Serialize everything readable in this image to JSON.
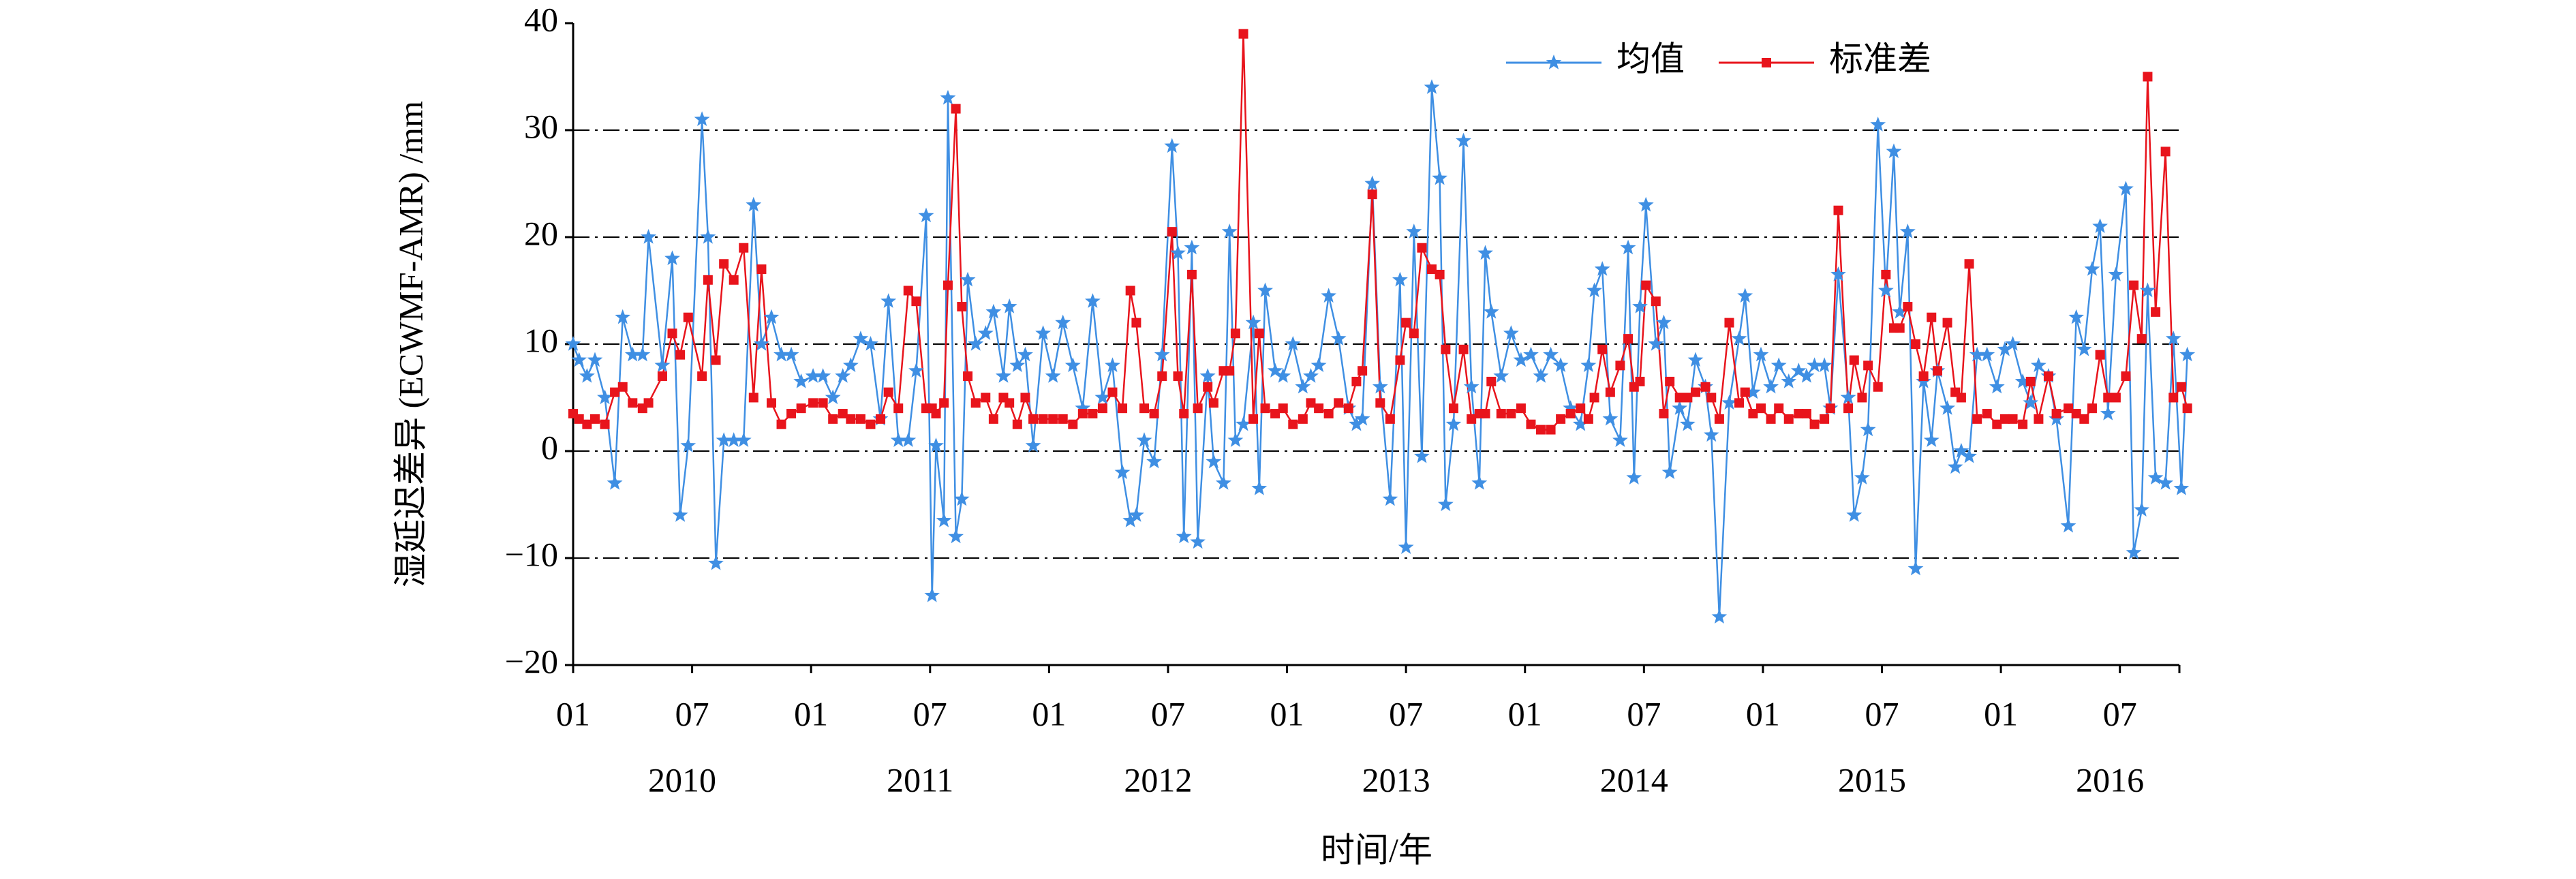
{
  "chart_data": {
    "type": "line",
    "y_label": "湿延迟差异 (ECWMF-AMR) /mm",
    "x_label": "时间/年",
    "years": [
      "2010",
      "2011",
      "2012",
      "2013",
      "2014",
      "2015",
      "2016"
    ],
    "xlim": [
      0,
      81
    ],
    "xticks": [
      {
        "value": 0,
        "label": "01"
      },
      {
        "value": 6,
        "label": "07"
      },
      {
        "value": 12,
        "label": "01"
      },
      {
        "value": 18,
        "label": "07"
      },
      {
        "value": 24,
        "label": "01"
      },
      {
        "value": 30,
        "label": "07"
      },
      {
        "value": 36,
        "label": "01"
      },
      {
        "value": 42,
        "label": "07"
      },
      {
        "value": 48,
        "label": "01"
      },
      {
        "value": 54,
        "label": "07"
      },
      {
        "value": 60,
        "label": "01"
      },
      {
        "value": 66,
        "label": "07"
      },
      {
        "value": 72,
        "label": "01"
      },
      {
        "value": 78,
        "label": "07"
      }
    ],
    "ylim": [
      -20,
      40
    ],
    "yticks": [
      {
        "value": -20,
        "label": "−20"
      },
      {
        "value": -10,
        "label": "−10"
      },
      0,
      10,
      20,
      30,
      40
    ],
    "grid": true,
    "legend": "top-right",
    "x": [
      0,
      0.3,
      0.7,
      1.1,
      1.6,
      2.1,
      2.5,
      3.0,
      3.5,
      3.8,
      4.5,
      5.0,
      5.4,
      5.8,
      6.5,
      6.8,
      7.2,
      7.6,
      8.1,
      8.6,
      9.1,
      9.5,
      10.0,
      10.5,
      11.0,
      11.5,
      12.1,
      12.6,
      13.1,
      13.6,
      14.0,
      14.5,
      15.0,
      15.5,
      15.9,
      16.4,
      16.9,
      17.3,
      17.8,
      18.1,
      18.3,
      18.7,
      18.9,
      19.3,
      19.6,
      19.9,
      20.3,
      20.8,
      21.2,
      21.7,
      22.0,
      22.4,
      22.8,
      23.2,
      23.7,
      24.2,
      24.7,
      25.2,
      25.7,
      26.2,
      26.7,
      27.2,
      27.7,
      28.1,
      28.4,
      28.8,
      29.3,
      29.7,
      30.2,
      30.5,
      30.8,
      31.2,
      31.5,
      32.0,
      32.3,
      32.8,
      33.1,
      33.4,
      33.8,
      34.3,
      34.6,
      34.9,
      35.4,
      35.8,
      36.3,
      36.8,
      37.2,
      37.6,
      38.1,
      38.6,
      39.1,
      39.5,
      39.8,
      40.3,
      40.7,
      41.2,
      41.7,
      42.0,
      42.4,
      42.8,
      43.3,
      43.7,
      44.0,
      44.4,
      44.9,
      45.3,
      45.7,
      46.0,
      46.3,
      46.8,
      47.3,
      47.8,
      48.3,
      48.8,
      49.3,
      49.8,
      50.3,
      50.8,
      51.2,
      51.5,
      51.9,
      52.3,
      52.8,
      53.2,
      53.5,
      53.8,
      54.1,
      54.6,
      55.0,
      55.3,
      55.8,
      56.2,
      56.6,
      57.1,
      57.4,
      57.8,
      58.3,
      58.8,
      59.1,
      59.5,
      59.9,
      60.4,
      60.8,
      61.3,
      61.8,
      62.2,
      62.6,
      63.1,
      63.4,
      63.8,
      64.3,
      64.6,
      65.0,
      65.3,
      65.8,
      66.2,
      66.6,
      66.9,
      67.3,
      67.7,
      68.1,
      68.5,
      68.8,
      69.3,
      69.7,
      70.0,
      70.4,
      70.8,
      71.3,
      71.8,
      72.2,
      72.6,
      73.1,
      73.5,
      73.9,
      74.4,
      74.8,
      75.4,
      75.8,
      76.2,
      76.6,
      77.0,
      77.4,
      77.8,
      78.3,
      78.7,
      79.1,
      79.4,
      79.8,
      80.3,
      80.7,
      81.1,
      81.4
    ],
    "series": [
      {
        "name": "均值",
        "color": "#3f8fe3",
        "marker": "star",
        "values": [
          10,
          8.5,
          7,
          8.5,
          5,
          -3,
          12.5,
          9,
          9,
          20,
          8,
          18,
          -6,
          0.5,
          31,
          20,
          -10.5,
          1,
          1,
          1,
          23,
          10,
          12.5,
          9,
          9,
          6.5,
          7,
          7,
          5,
          7,
          8,
          10.5,
          10,
          3,
          14,
          1,
          1,
          7.5,
          22,
          -13.5,
          0.5,
          -6.5,
          33,
          -8,
          -4.5,
          16,
          10,
          11,
          13,
          7,
          13.5,
          8,
          9,
          0.5,
          11,
          7,
          12,
          8,
          4,
          14,
          5,
          8,
          -2,
          -6.5,
          -6,
          1,
          -1,
          9,
          28.5,
          18.5,
          -8,
          19,
          -8.5,
          7,
          -1,
          -3,
          20.5,
          1,
          2.5,
          12,
          -3.5,
          15,
          7.5,
          7,
          10,
          6,
          7,
          8,
          14.5,
          10.5,
          4,
          2.5,
          3,
          25,
          6,
          -4.5,
          16,
          -9,
          20.5,
          -0.5,
          34,
          25.5,
          -5,
          2.5,
          29,
          6,
          -3,
          18.5,
          13,
          7,
          11,
          8.5,
          9,
          7,
          9,
          8,
          4,
          2.5,
          8,
          15,
          17,
          3,
          1,
          19,
          -2.5,
          13.5,
          23,
          10,
          12,
          -2,
          4,
          2.5,
          8.5,
          6,
          1.5,
          -15.5,
          4.5,
          10.5,
          14.5,
          5.5,
          9,
          6,
          8,
          6.5,
          7.5,
          7,
          8,
          8,
          4,
          16.5,
          5,
          -6,
          -2.5,
          2,
          30.5,
          15,
          28,
          13,
          20.5,
          -11,
          6.5,
          1,
          7.5,
          4,
          -1.5,
          0,
          -0.5,
          9,
          9,
          6,
          9.5,
          10,
          6.5,
          4.5,
          8,
          7,
          3,
          -7,
          12.5,
          9.5,
          17,
          21,
          3.5,
          16.5,
          24.5,
          -9.5,
          -5.5,
          15,
          -2.5,
          -3,
          10.5,
          -3.5,
          9
        ]
      },
      {
        "name": "标准差",
        "color": "#e8141c",
        "marker": "square",
        "values": [
          3.5,
          3,
          2.5,
          3,
          2.5,
          5.5,
          6,
          4.5,
          4,
          4.5,
          7,
          11,
          9,
          12.5,
          7,
          16,
          8.5,
          17.5,
          16,
          19,
          5,
          17,
          4.5,
          2.5,
          3.5,
          4,
          4.5,
          4.5,
          3,
          3.5,
          3,
          3,
          2.5,
          3,
          5.5,
          4,
          15,
          14,
          4,
          4,
          3.5,
          4.5,
          15.5,
          32,
          13.5,
          7,
          4.5,
          5,
          3,
          5,
          4.5,
          2.5,
          5,
          3,
          3,
          3,
          3,
          2.5,
          3.5,
          3.5,
          4,
          5.5,
          4,
          15,
          12,
          4,
          3.5,
          7,
          20.5,
          7,
          3.5,
          16.5,
          4,
          6,
          4.5,
          7.5,
          7.5,
          11,
          39,
          3,
          11,
          4,
          3.5,
          4,
          2.5,
          3,
          4.5,
          4,
          3.5,
          4.5,
          4,
          6.5,
          7.5,
          24,
          4.5,
          3,
          8.5,
          12,
          11,
          19,
          17,
          16.5,
          9.5,
          4,
          9.5,
          3,
          3.5,
          3.5,
          6.5,
          3.5,
          3.5,
          4,
          2.5,
          2,
          2,
          3,
          3.5,
          4,
          3,
          5,
          9.5,
          5.5,
          8,
          10.5,
          6,
          6.5,
          15.5,
          14,
          3.5,
          6.5,
          5,
          5,
          5.5,
          6,
          5,
          3,
          12,
          4.5,
          5.5,
          3.5,
          4,
          3,
          4,
          3,
          3.5,
          3.5,
          2.5,
          3,
          4,
          22.5,
          4,
          8.5,
          5,
          8,
          6,
          16.5,
          11.5,
          11.5,
          13.5,
          10,
          7,
          12.5,
          7.5,
          12,
          5.5,
          5,
          17.5,
          3,
          3.5,
          2.5,
          3,
          3,
          2.5,
          6.5,
          3,
          7,
          3.5,
          4,
          3.5,
          3,
          4,
          9,
          5,
          5,
          7,
          15.5,
          10.5,
          35,
          13,
          28,
          5,
          6,
          4
        ]
      }
    ]
  }
}
